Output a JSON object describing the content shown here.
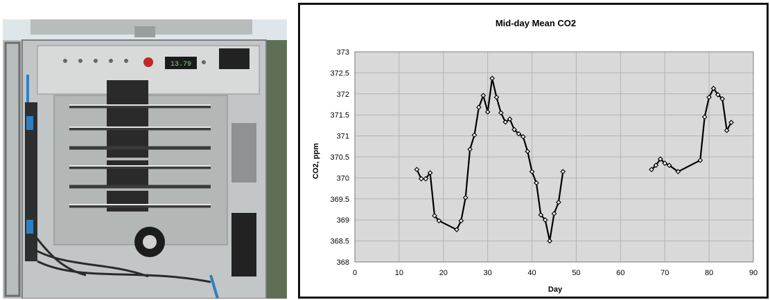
{
  "photo": {
    "description_icon": "instrument-enclosure-photo",
    "display_reading": "13.79"
  },
  "chart_data": {
    "type": "line",
    "title": "Mid-day Mean CO2",
    "xlabel": "Day",
    "ylabel": "CO2, ppm",
    "xlim": [
      0,
      90
    ],
    "ylim": [
      368,
      373
    ],
    "x_ticks": [
      0,
      10,
      20,
      30,
      40,
      50,
      60,
      70,
      80,
      90
    ],
    "y_ticks": [
      368,
      368.5,
      369,
      369.5,
      370,
      370.5,
      371,
      371.5,
      372,
      372.5,
      373
    ],
    "grid": true,
    "plot_background": "#d9d9d9",
    "line_color": "#000000",
    "marker": "open-diamond",
    "segments": [
      [
        [
          14,
          370.2
        ],
        [
          15,
          369.98
        ],
        [
          16,
          369.98
        ],
        [
          17,
          370.12
        ],
        [
          18,
          369.1
        ],
        [
          19,
          368.98
        ],
        [
          23,
          368.77
        ],
        [
          24,
          368.98
        ],
        [
          25,
          369.53
        ],
        [
          26,
          370.68
        ],
        [
          27,
          371.02
        ],
        [
          28,
          371.68
        ],
        [
          29,
          371.96
        ],
        [
          30,
          371.57
        ],
        [
          31,
          372.37
        ],
        [
          32,
          371.92
        ],
        [
          33,
          371.55
        ],
        [
          34,
          371.33
        ],
        [
          35,
          371.4
        ],
        [
          36,
          371.15
        ],
        [
          37,
          371.05
        ],
        [
          38,
          370.98
        ],
        [
          39,
          370.63
        ],
        [
          40,
          370.15
        ],
        [
          41,
          369.88
        ],
        [
          42,
          369.12
        ],
        [
          43,
          369.0
        ],
        [
          44,
          368.5
        ],
        [
          45,
          369.15
        ],
        [
          46,
          369.42
        ],
        [
          47,
          370.15
        ]
      ],
      [
        [
          67,
          370.2
        ],
        [
          68,
          370.3
        ],
        [
          69,
          370.45
        ],
        [
          70,
          370.35
        ],
        [
          71,
          370.3
        ],
        [
          73,
          370.15
        ],
        [
          78,
          370.42
        ],
        [
          79,
          371.45
        ],
        [
          80,
          371.92
        ],
        [
          81,
          372.13
        ],
        [
          82,
          371.98
        ],
        [
          83,
          371.88
        ],
        [
          84,
          371.13
        ],
        [
          85,
          371.32
        ]
      ]
    ]
  }
}
